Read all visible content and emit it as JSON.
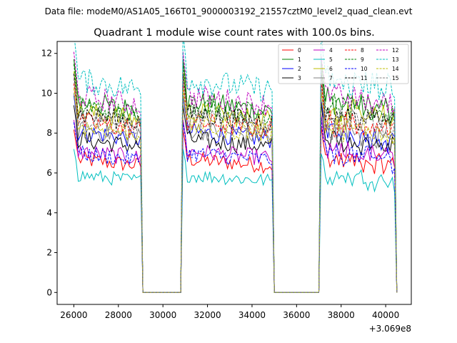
{
  "suptitle": "Data file: modeM0/AS1A05_166T01_9000003192_21557cztM0_level2_quad_clean.evt",
  "chart_data": {
    "type": "line",
    "title": "Quadrant 1 module wise count rates with 100.0s bins.",
    "xlabel": "",
    "ylabel": "",
    "x_offset_label": "+3.069e8",
    "xlim": [
      25250,
      41150
    ],
    "ylim": [
      -0.6,
      12.6
    ],
    "x_ticks": [
      26000,
      28000,
      30000,
      32000,
      34000,
      36000,
      38000,
      40000
    ],
    "x_tick_labels": [
      "26000",
      "28000",
      "30000",
      "32000",
      "34000",
      "36000",
      "38000",
      "40000"
    ],
    "y_ticks": [
      0,
      2,
      4,
      6,
      8,
      10,
      12
    ],
    "y_tick_labels": [
      "0",
      "2",
      "4",
      "6",
      "8",
      "10",
      "12"
    ],
    "bin_seconds": 100,
    "x_start": 26000,
    "segments": [
      {
        "start": 26000,
        "end": 29000
      },
      {
        "start": 30900,
        "end": 34900
      },
      {
        "start": 37100,
        "end": 40400
      }
    ],
    "gap_value": 0,
    "legend": {
      "location": "top-right",
      "columns": 4
    },
    "series": [
      {
        "name": "0",
        "color": "#ff0000",
        "dash": "solid",
        "mean": 6.7
      },
      {
        "name": "1",
        "color": "#008000",
        "dash": "solid",
        "mean": 9.6
      },
      {
        "name": "2",
        "color": "#0000ff",
        "dash": "solid",
        "mean": 8.1
      },
      {
        "name": "3",
        "color": "#000000",
        "dash": "solid",
        "mean": 7.7
      },
      {
        "name": "4",
        "color": "#bf00bf",
        "dash": "solid",
        "mean": 7.1
      },
      {
        "name": "5",
        "color": "#00bfbf",
        "dash": "solid",
        "mean": 5.9
      },
      {
        "name": "6",
        "color": "#bfbf00",
        "dash": "solid",
        "mean": 9.1
      },
      {
        "name": "7",
        "color": "#808080",
        "dash": "solid",
        "mean": 8.2
      },
      {
        "name": "8",
        "color": "#ff0000",
        "dash": "dashed",
        "mean": 8.6
      },
      {
        "name": "9",
        "color": "#008000",
        "dash": "dashed",
        "mean": 9.4
      },
      {
        "name": "10",
        "color": "#0000ff",
        "dash": "dashed",
        "mean": 7.0
      },
      {
        "name": "11",
        "color": "#000000",
        "dash": "dashed",
        "mean": 9.0
      },
      {
        "name": "12",
        "color": "#bf00bf",
        "dash": "dashed",
        "mean": 9.9
      },
      {
        "name": "13",
        "color": "#00bfbf",
        "dash": "dashed",
        "mean": 10.7
      },
      {
        "name": "14",
        "color": "#bfbf00",
        "dash": "dashed",
        "mean": 8.4
      },
      {
        "name": "15",
        "color": "#808080",
        "dash": "dashed",
        "mean": 8.8
      }
    ]
  }
}
